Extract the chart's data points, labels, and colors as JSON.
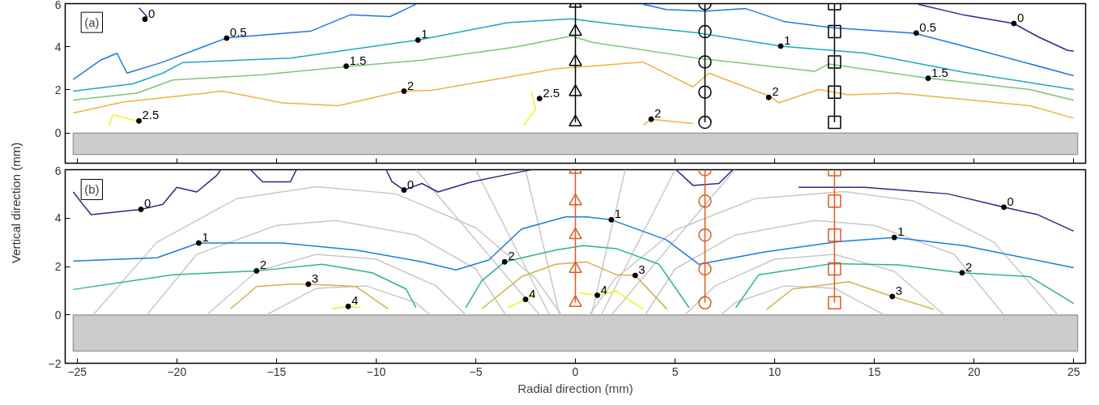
{
  "chart_data": [
    {
      "type": "line",
      "xlim": [
        -25.6,
        25.6
      ],
      "ylim": [
        -1.4,
        6
      ],
      "xticks": [
        -25,
        -20,
        -15,
        -10,
        -5,
        0,
        5,
        10,
        15,
        20,
        25
      ],
      "yticks": [
        0,
        2,
        4,
        6
      ],
      "tick_labels": "y",
      "bands": [
        {
          "axis": "y",
          "from": -1.0,
          "to": 0,
          "color": "#cccccc"
        }
      ],
      "annotations": [
        "(a)",
        {
          "text": "0",
          "x": -21.6,
          "y": 5.28
        },
        {
          "text": "0.5",
          "x": -17.5,
          "y": 4.4
        },
        {
          "text": "1",
          "x": -7.9,
          "y": 4.31
        },
        {
          "text": "1.5",
          "x": -11.5,
          "y": 3.1
        },
        {
          "text": "2",
          "x": -8.6,
          "y": 1.94
        },
        {
          "text": "2.5",
          "x": -21.9,
          "y": 0.56
        },
        {
          "text": "2.5",
          "x": -1.8,
          "y": 1.6
        },
        {
          "text": "2",
          "x": 3.8,
          "y": 0.64
        },
        {
          "text": "1",
          "x": 10.3,
          "y": 4.03
        },
        {
          "text": "2",
          "x": 9.7,
          "y": 1.65
        },
        {
          "text": "0.5",
          "x": 17.1,
          "y": 4.64
        },
        {
          "text": "1.5",
          "x": 17.7,
          "y": 2.54
        },
        {
          "text": "0",
          "x": 22.0,
          "y": 5.08
        }
      ],
      "series": [
        {
          "color": "#3b1f8f",
          "x": [
            -21.9,
            -21.5,
            -21.6
          ],
          "values": [
            5.8,
            5.4,
            5.24
          ]
        },
        {
          "color": "#3b1f8f",
          "x": [
            17.2,
            19.5,
            22.0,
            23.2,
            24.7,
            25.0
          ],
          "values": [
            5.97,
            5.47,
            5.08,
            4.47,
            3.83,
            3.8
          ]
        },
        {
          "color": "#1f77e0",
          "x": [
            -25.2,
            -23.8,
            -23.0,
            -22.5,
            -20.7,
            -17.5,
            -13.3,
            -11.3,
            -9.3,
            -8.0
          ],
          "values": [
            2.48,
            3.39,
            3.7,
            2.78,
            3.29,
            4.41,
            4.72,
            5.48,
            5.4,
            5.97
          ]
        },
        {
          "color": "#1f77e0",
          "x": [
            3.4,
            4.55,
            6.55,
            8.55,
            10.5,
            12.9,
            17.0,
            19.5,
            25.0
          ],
          "values": [
            5.97,
            5.73,
            5.65,
            5.77,
            5.16,
            4.88,
            4.63,
            4.03,
            2.66
          ]
        },
        {
          "color": "#1aa8c8",
          "x": [
            -25.2,
            -22.2,
            -20.7,
            -19.7,
            -14.3,
            -7.9,
            -3.4,
            -0.2,
            2.0,
            6.2,
            10.3,
            14.5,
            19.5,
            25.0
          ],
          "values": [
            1.94,
            2.28,
            2.78,
            3.27,
            3.47,
            4.31,
            5.12,
            5.3,
            5.04,
            4.64,
            4.03,
            3.71,
            2.82,
            2.02
          ]
        },
        {
          "color": "#7bc47a",
          "x": [
            -25.2,
            -22.0,
            -20.2,
            -15.7,
            -11.5,
            -7.7,
            -3.0,
            -0.2,
            0.9,
            6.2,
            12.0,
            12.7,
            17.7,
            22.8,
            25.0
          ],
          "values": [
            1.53,
            1.85,
            2.46,
            2.7,
            3.08,
            3.38,
            3.99,
            4.5,
            4.2,
            3.46,
            2.86,
            3.2,
            2.54,
            2.02,
            1.52
          ]
        },
        {
          "color": "#f0b040",
          "x": [
            -25.2,
            -22.7,
            -17.7,
            -14.7,
            -11.9,
            -8.7,
            -7.2,
            -1.0,
            3.4,
            5.9,
            6.7,
            9.8,
            10.2,
            12.2,
            13.7,
            16.2,
            22.8,
            25.0
          ],
          "values": [
            0.93,
            1.44,
            1.94,
            1.4,
            1.27,
            1.94,
            1.98,
            2.98,
            3.29,
            2.14,
            2.78,
            1.69,
            1.4,
            2.02,
            1.77,
            1.85,
            1.27,
            0.69
          ]
        },
        {
          "color": "#f0b040",
          "x": [
            3.4,
            3.8,
            5.9
          ],
          "values": [
            0.36,
            0.64,
            0.44
          ]
        },
        {
          "color": "#f5f016",
          "x": [
            -23.4,
            -23.2,
            -22.0
          ],
          "values": [
            0.36,
            0.85,
            0.56
          ]
        },
        {
          "color": "#f5f016",
          "x": [
            -2.2,
            -2.0,
            -2.6
          ],
          "values": [
            1.94,
            1.1,
            0.36
          ]
        },
        {
          "color": "#000000",
          "marker": "triangle",
          "x": [
            0,
            0,
            0,
            0,
            0
          ],
          "values": [
            0.5,
            1.9,
            3.3,
            4.7,
            6.0
          ]
        },
        {
          "color": "#000000",
          "marker": "circle",
          "x": [
            6.5,
            6.5,
            6.5,
            6.5,
            6.5
          ],
          "values": [
            0.5,
            1.9,
            3.3,
            4.7,
            6.0
          ]
        },
        {
          "color": "#000000",
          "marker": "square",
          "x": [
            13,
            13,
            13,
            13,
            13
          ],
          "values": [
            0.5,
            1.9,
            3.3,
            4.7,
            6.0
          ]
        }
      ]
    },
    {
      "type": "line",
      "xlim": [
        -25.6,
        25.6
      ],
      "ylim": [
        -2,
        6
      ],
      "xticks": [
        -25,
        -20,
        -15,
        -10,
        -5,
        0,
        5,
        10,
        15,
        20,
        25
      ],
      "yticks": [
        -2,
        0,
        2,
        4,
        6
      ],
      "xlabel": "Radial direction (mm)",
      "ylabel": "Vertical direction (mm)",
      "bands": [
        {
          "axis": "y",
          "from": -1.5,
          "to": 0,
          "color": "#cccccc"
        }
      ],
      "annotations": [
        "(b)",
        {
          "text": "0",
          "x": -21.8,
          "y": 4.36
        },
        {
          "text": "0",
          "x": -8.6,
          "y": 5.16
        },
        {
          "text": "0",
          "x": 21.5,
          "y": 4.45
        },
        {
          "text": "1",
          "x": -18.9,
          "y": 2.97
        },
        {
          "text": "1",
          "x": 1.8,
          "y": 3.93
        },
        {
          "text": "1",
          "x": 16.0,
          "y": 3.2
        },
        {
          "text": "2",
          "x": -16.0,
          "y": 1.82
        },
        {
          "text": "2",
          "x": -3.55,
          "y": 2.19
        },
        {
          "text": "2",
          "x": 19.4,
          "y": 1.74
        },
        {
          "text": "3",
          "x": -13.4,
          "y": 1.27
        },
        {
          "text": "3",
          "x": 3.0,
          "y": 1.63
        },
        {
          "text": "3",
          "x": 15.9,
          "y": 0.76
        },
        {
          "text": "4",
          "x": -11.4,
          "y": 0.35
        },
        {
          "text": "4",
          "x": -2.5,
          "y": 0.64
        },
        {
          "text": "4",
          "x": 1.1,
          "y": 0.81
        }
      ],
      "series": [
        {
          "color": "#c8c8c8",
          "x": [
            -24.2,
            -21,
            -17,
            -13,
            -9,
            -5,
            -2,
            -0.7
          ],
          "values": [
            0,
            3.0,
            4.8,
            5.3,
            5.0,
            3.6,
            1.5,
            0
          ]
        },
        {
          "color": "#c8c8c8",
          "x": [
            -21.5,
            -19,
            -15,
            -12,
            -8,
            -5,
            -3.5
          ],
          "values": [
            0,
            2.5,
            3.7,
            3.9,
            3.3,
            1.9,
            0
          ]
        },
        {
          "color": "#c8c8c8",
          "x": [
            -18.5,
            -16,
            -13,
            -10,
            -7,
            -5.5
          ],
          "values": [
            0,
            1.8,
            2.5,
            2.3,
            1.2,
            0
          ]
        },
        {
          "color": "#c8c8c8",
          "x": [
            -15.5,
            -13,
            -10.5,
            -8,
            -7.3
          ],
          "values": [
            0,
            1.1,
            1.2,
            0.5,
            0
          ]
        },
        {
          "color": "#c8c8c8",
          "x": [
            24.2,
            21,
            17,
            13.5,
            9,
            5,
            2,
            0.7
          ],
          "values": [
            0,
            3.0,
            4.7,
            5.1,
            4.8,
            3.5,
            1.5,
            0
          ]
        },
        {
          "color": "#c8c8c8",
          "x": [
            21.5,
            19,
            15,
            12,
            8,
            5,
            3.5
          ],
          "values": [
            0,
            2.5,
            3.7,
            3.9,
            3.3,
            1.9,
            0
          ]
        },
        {
          "color": "#c8c8c8",
          "x": [
            18.5,
            16,
            13,
            10,
            7,
            5.5
          ],
          "values": [
            0,
            1.8,
            2.5,
            2.3,
            1.2,
            0
          ]
        },
        {
          "color": "#c8c8c8",
          "x": [
            15.5,
            13,
            10.5,
            8,
            7.3
          ],
          "values": [
            0,
            1.1,
            1.2,
            0.5,
            0
          ]
        },
        {
          "color": "#c8c8c8",
          "x": [
            -0.8,
            -2.5
          ],
          "values": [
            0,
            6
          ]
        },
        {
          "color": "#c8c8c8",
          "x": [
            -1.3,
            -5.0
          ],
          "values": [
            0,
            6
          ]
        },
        {
          "color": "#c8c8c8",
          "x": [
            -1.8,
            -8.0
          ],
          "values": [
            0,
            6
          ]
        },
        {
          "color": "#c8c8c8",
          "x": [
            0.8,
            2.5
          ],
          "values": [
            0,
            6
          ]
        },
        {
          "color": "#c8c8c8",
          "x": [
            1.3,
            5.0
          ],
          "values": [
            0,
            6
          ]
        },
        {
          "color": "#c8c8c8",
          "x": [
            1.8,
            8.0
          ],
          "values": [
            0,
            6
          ]
        },
        {
          "color": "#33248a",
          "x": [
            -25.2,
            -24.3,
            -21.8,
            -20.7,
            -20.0,
            -19.0,
            -18.0,
            -17.8
          ],
          "values": [
            5.08,
            4.14,
            4.36,
            4.57,
            5.27,
            5.08,
            5.76,
            6.0
          ]
        },
        {
          "color": "#33248a",
          "x": [
            -16.3,
            -15.7,
            -14.3,
            -14.0
          ],
          "values": [
            6.0,
            5.5,
            5.5,
            6.0
          ]
        },
        {
          "color": "#33248a",
          "x": [
            -9.5,
            -9.2,
            -8.6,
            -7.7,
            -6.9,
            -5.2,
            -2.7,
            -2.2
          ],
          "values": [
            6.0,
            5.5,
            5.16,
            5.43,
            5.08,
            5.5,
            5.92,
            6.0
          ]
        },
        {
          "color": "#33248a",
          "x": [
            5.05,
            5.9,
            7.2,
            7.9
          ],
          "values": [
            6.0,
            5.35,
            5.43,
            6.0
          ]
        },
        {
          "color": "#33248a",
          "x": [
            11.2,
            14.5,
            16.2,
            18.7,
            21.5,
            23.2,
            25.0
          ],
          "values": [
            5.27,
            5.27,
            5.16,
            5.0,
            4.45,
            4.14,
            3.46
          ]
        },
        {
          "color": "#1a7ce0",
          "x": [
            -25.2,
            -21.0,
            -18.9,
            -14.7,
            -11.0,
            -7.7,
            -6.0,
            -4.35,
            -2.7,
            -0.5,
            0.56,
            1.8,
            4.55,
            6.2,
            9.5,
            13.2,
            16.0,
            19.5,
            25.0
          ],
          "values": [
            2.23,
            2.36,
            2.97,
            2.97,
            2.68,
            2.19,
            1.86,
            2.27,
            3.55,
            4.05,
            4.05,
            3.93,
            3.11,
            2.09,
            2.6,
            3.03,
            3.2,
            2.86,
            1.95
          ]
        },
        {
          "color": "#2ab396",
          "x": [
            -25.2,
            -20.2,
            -16.0,
            -12.7,
            -10.2,
            -8.5,
            -8.0
          ],
          "values": [
            1.05,
            1.66,
            1.82,
            2.09,
            1.74,
            1.07,
            0.3
          ]
        },
        {
          "color": "#2ab396",
          "x": [
            -5.5,
            -4.7,
            -3.55,
            -1.0,
            0.4,
            2.05,
            4.2,
            5.7
          ],
          "values": [
            0.3,
            1.41,
            2.19,
            2.68,
            2.86,
            2.74,
            2.09,
            0.3
          ]
        },
        {
          "color": "#2ab396",
          "x": [
            8.05,
            9.2,
            12.9,
            16.2,
            19.4,
            22.8,
            25.0
          ],
          "values": [
            0.3,
            1.66,
            2.12,
            2.07,
            1.74,
            1.58,
            0.47
          ]
        },
        {
          "color": "#d4b04a",
          "x": [
            -17.3,
            -16.0,
            -14.3,
            -13.4,
            -11.0,
            -9.4
          ],
          "values": [
            0.25,
            1.17,
            1.27,
            1.27,
            1.17,
            0.25
          ]
        },
        {
          "color": "#d4b04a",
          "x": [
            -4.7,
            -2.7,
            -1.0,
            0.56,
            2.05,
            3.0,
            4.6
          ],
          "values": [
            0.25,
            1.58,
            2.09,
            2.19,
            1.66,
            1.63,
            0.23
          ]
        },
        {
          "color": "#d4b04a",
          "x": [
            9.6,
            10.9,
            13.7,
            15.9,
            18.0
          ],
          "values": [
            0.23,
            1.07,
            1.37,
            0.76,
            0.23
          ]
        },
        {
          "color": "#f0f01a",
          "x": [
            -12.2,
            -11.4,
            -10.8
          ],
          "values": [
            0.25,
            0.35,
            0.3
          ]
        },
        {
          "color": "#f0f01a",
          "x": [
            -3.4,
            -2.5,
            -2.0
          ],
          "values": [
            0.3,
            0.64,
            0.9
          ]
        },
        {
          "color": "#f0f01a",
          "x": [
            0.2,
            1.1,
            2.05,
            3.4
          ],
          "values": [
            0.9,
            0.81,
            0.98,
            0.23
          ]
        },
        {
          "color": "#e05a1e",
          "marker": "triangle",
          "x": [
            0,
            0,
            0,
            0,
            0
          ],
          "values": [
            0.5,
            1.9,
            3.3,
            4.7,
            6.0
          ]
        },
        {
          "color": "#e05a1e",
          "marker": "circle",
          "x": [
            6.5,
            6.5,
            6.5,
            6.5,
            6.5
          ],
          "values": [
            0.5,
            1.9,
            3.3,
            4.7,
            6.0
          ]
        },
        {
          "color": "#e05a1e",
          "marker": "square",
          "x": [
            13,
            13,
            13,
            13,
            13
          ],
          "values": [
            0.5,
            1.9,
            3.3,
            4.7,
            6.0
          ]
        }
      ]
    }
  ]
}
